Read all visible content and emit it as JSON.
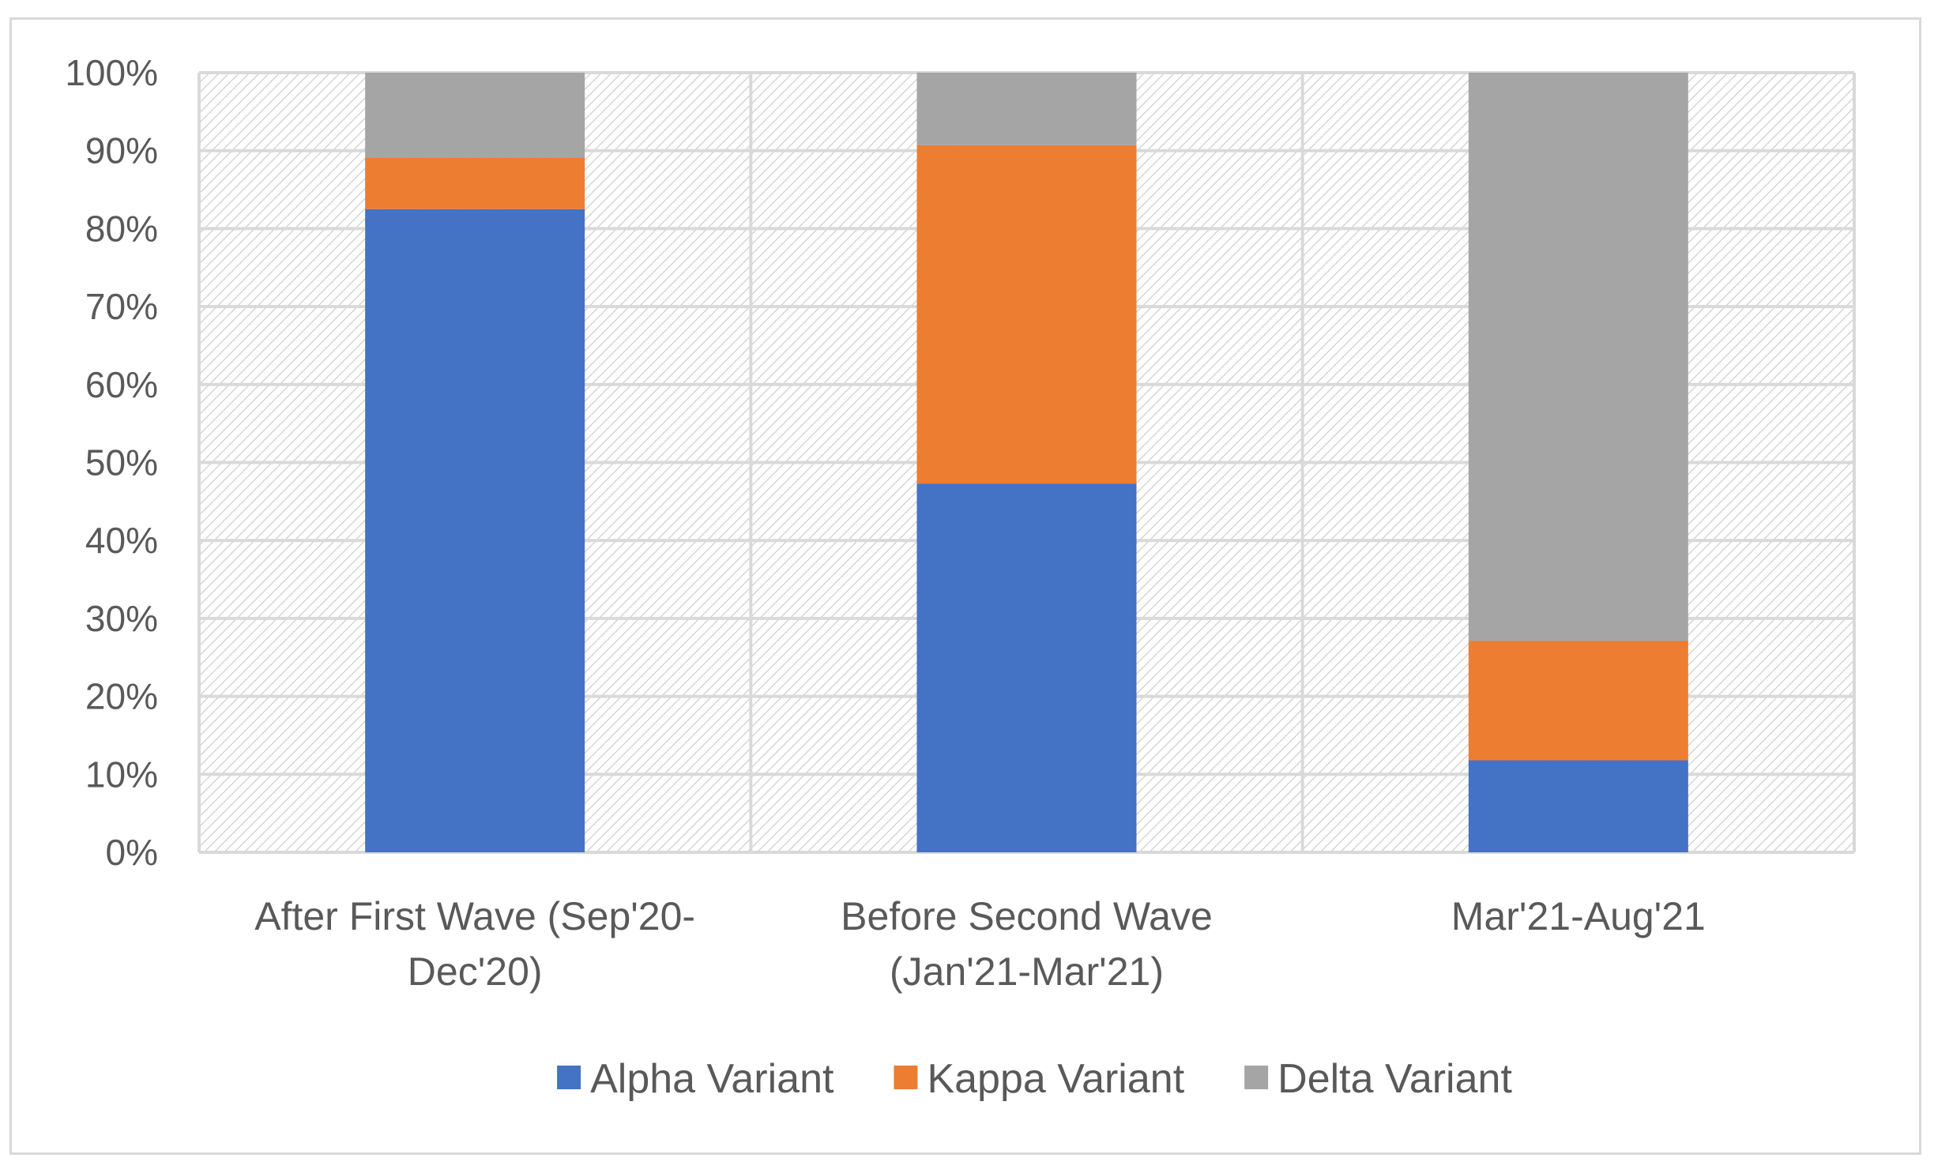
{
  "chart_data": {
    "type": "bar",
    "stacked": true,
    "percent_stacked": true,
    "title": "",
    "xlabel": "",
    "ylabel": "",
    "ylim": [
      0,
      100
    ],
    "yticks": [
      "0%",
      "10%",
      "20%",
      "30%",
      "40%",
      "50%",
      "60%",
      "70%",
      "80%",
      "90%",
      "100%"
    ],
    "categories": [
      [
        "After First Wave (Sep'20-",
        "Dec'20)"
      ],
      [
        "Before Second Wave",
        "(Jan'21-Mar'21)"
      ],
      [
        "Mar'21-Aug'21"
      ]
    ],
    "series": [
      {
        "name": "Alpha Variant",
        "color": "#4472c4",
        "values": [
          82.5,
          47.3,
          11.8
        ]
      },
      {
        "name": "Kappa Variant",
        "color": "#ed7d31",
        "values": [
          6.6,
          43.4,
          15.3
        ]
      },
      {
        "name": "Delta Variant",
        "color": "#a5a5a5",
        "values": [
          10.9,
          9.3,
          72.9
        ]
      }
    ],
    "grid": true,
    "legend_position": "bottom"
  }
}
